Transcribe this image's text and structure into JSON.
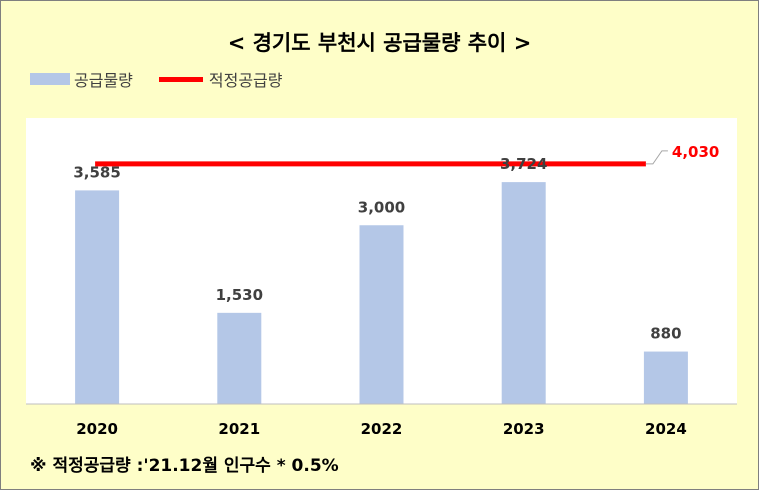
{
  "title": "< 경기도 부천시 공급물량 추이 >",
  "legend": {
    "bar_label": "공급물량",
    "line_label": "적정공급량"
  },
  "footnote": "※ 적정공급량 :'21.12월 인구수 * 0.5%",
  "colors": {
    "bar": "#b4c7e7",
    "line": "#ff0000",
    "background": "#fefec8",
    "plot_area": "#ffffff"
  },
  "chart_data": {
    "type": "bar",
    "categories": [
      "2020",
      "2021",
      "2022",
      "2023",
      "2024"
    ],
    "series": [
      {
        "name": "공급물량",
        "type": "bar",
        "values": [
          3585,
          1530,
          3000,
          3724,
          880
        ]
      },
      {
        "name": "적정공급량",
        "type": "line",
        "values": [
          4030,
          4030,
          4030,
          4030,
          4030
        ]
      }
    ],
    "data_labels": [
      "3,585",
      "1,530",
      "3,000",
      "3,724",
      "880"
    ],
    "line_label": "4,030",
    "ylim": [
      0,
      4800
    ],
    "grid": false,
    "y_axis_visible": false,
    "legend_position": "top-left"
  }
}
